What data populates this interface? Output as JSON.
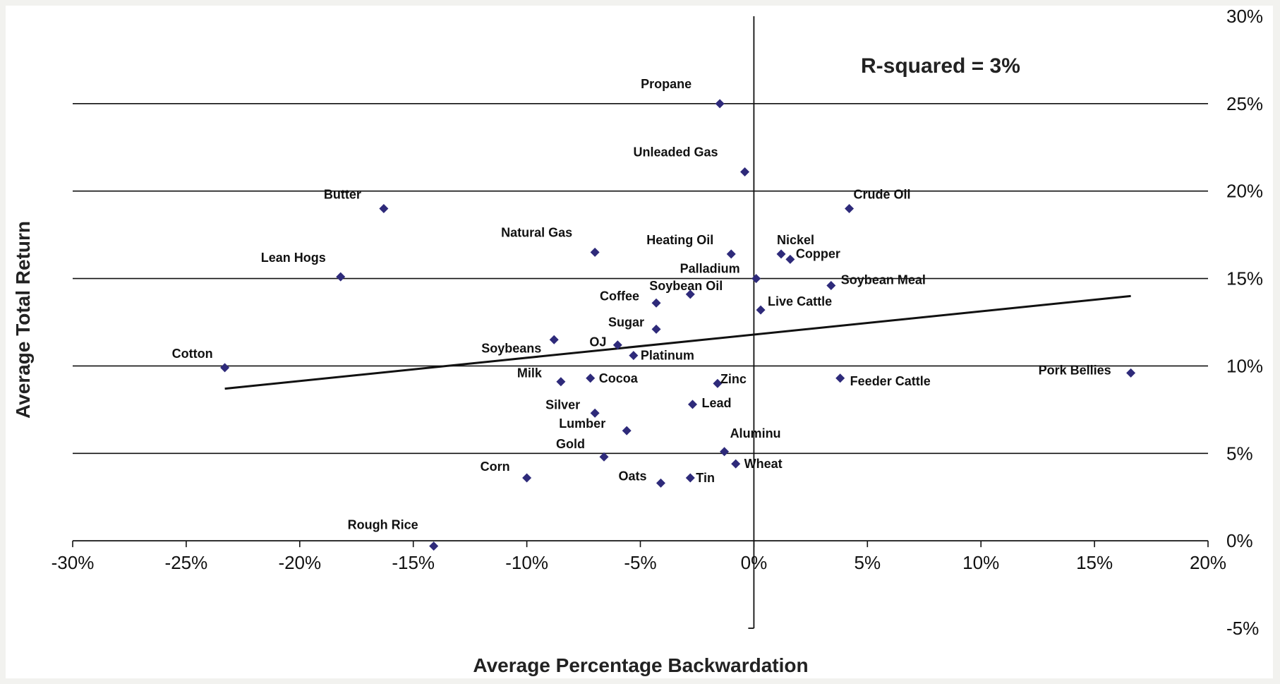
{
  "chart_data": {
    "type": "scatter",
    "title": "",
    "xlabel": "Average Percentage Backwardation",
    "ylabel": "Average Total Return",
    "xlim": [
      -0.3,
      0.2
    ],
    "ylim": [
      -0.05,
      0.3
    ],
    "x_ticks": [
      "-30%",
      "-25%",
      "-20%",
      "-15%",
      "-10%",
      "-5%",
      "0%",
      "5%",
      "10%",
      "15%",
      "20%"
    ],
    "y_ticks": [
      "30%",
      "25%",
      "20%",
      "15%",
      "10%",
      "5%",
      "0%",
      "-5%"
    ],
    "grid": "horizontal",
    "annotation": "R-squared =  3%",
    "series": [
      {
        "color": "#2e2a7a",
        "points": [
          {
            "label": "Propane",
            "x": -0.015,
            "y": 0.25
          },
          {
            "label": "Unleaded Gas",
            "x": -0.004,
            "y": 0.211
          },
          {
            "label": "Butter",
            "x": -0.163,
            "y": 0.19
          },
          {
            "label": "Crude Oil",
            "x": 0.042,
            "y": 0.19
          },
          {
            "label": "Natural Gas",
            "x": -0.07,
            "y": 0.165
          },
          {
            "label": "Heating Oil",
            "x": -0.01,
            "y": 0.164
          },
          {
            "label": "Nickel",
            "x": 0.012,
            "y": 0.164
          },
          {
            "label": "Copper",
            "x": 0.016,
            "y": 0.161
          },
          {
            "label": "Lean Hogs",
            "x": -0.182,
            "y": 0.151
          },
          {
            "label": "Palladium",
            "x": 0.001,
            "y": 0.15
          },
          {
            "label": "Soybean Meal",
            "x": 0.034,
            "y": 0.146
          },
          {
            "label": "Soybean Oil",
            "x": -0.028,
            "y": 0.141
          },
          {
            "label": "Coffee",
            "x": -0.043,
            "y": 0.136
          },
          {
            "label": "Live Cattle",
            "x": 0.003,
            "y": 0.132
          },
          {
            "label": "Sugar",
            "x": -0.043,
            "y": 0.121
          },
          {
            "label": "Soybeans",
            "x": -0.088,
            "y": 0.115
          },
          {
            "label": "OJ",
            "x": -0.06,
            "y": 0.112
          },
          {
            "label": "Platinum",
            "x": -0.053,
            "y": 0.106
          },
          {
            "label": "Cotton",
            "x": -0.233,
            "y": 0.099
          },
          {
            "label": "Pork Bellies",
            "x": 0.166,
            "y": 0.096
          },
          {
            "label": "Feeder Cattle",
            "x": 0.038,
            "y": 0.093
          },
          {
            "label": "Milk",
            "x": -0.085,
            "y": 0.091
          },
          {
            "label": "Cocoa",
            "x": -0.072,
            "y": 0.093
          },
          {
            "label": "Zinc",
            "x": -0.016,
            "y": 0.09
          },
          {
            "label": "Lead",
            "x": -0.027,
            "y": 0.078
          },
          {
            "label": "Silver",
            "x": -0.07,
            "y": 0.073
          },
          {
            "label": "Lumber",
            "x": -0.056,
            "y": 0.063
          },
          {
            "label": "Aluminu",
            "x": -0.013,
            "y": 0.051
          },
          {
            "label": "Gold",
            "x": -0.066,
            "y": 0.048
          },
          {
            "label": "Wheat",
            "x": -0.008,
            "y": 0.044
          },
          {
            "label": "Corn",
            "x": -0.1,
            "y": 0.036
          },
          {
            "label": "Tin",
            "x": -0.028,
            "y": 0.036
          },
          {
            "label": "Oats",
            "x": -0.041,
            "y": 0.033
          },
          {
            "label": "Rough Rice",
            "x": -0.141,
            "y": -0.003
          }
        ]
      }
    ],
    "trendline": {
      "x": [
        -0.233,
        0.166
      ],
      "y": [
        0.087,
        0.14
      ]
    }
  }
}
